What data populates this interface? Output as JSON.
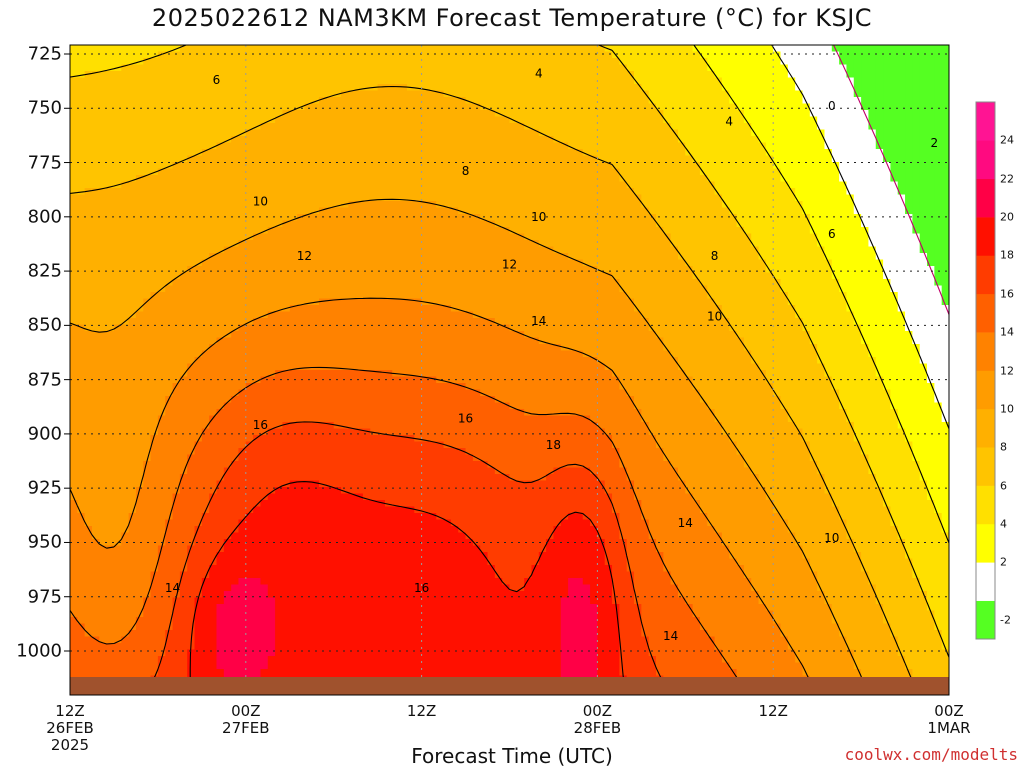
{
  "title": "2025022612 NAM3KM Forecast Temperature (°C) for KSJC",
  "credit": "coolwx.com/modelts",
  "chart_data": {
    "type": "heatmap",
    "title": "2025022612 NAM3KM Forecast Temperature (°C) for KSJC",
    "xlabel": "Forecast Time (UTC)",
    "ylabel": "",
    "y_ticks": [
      "725",
      "750",
      "775",
      "800",
      "825",
      "850",
      "875",
      "900",
      "925",
      "950",
      "975",
      "1000"
    ],
    "y_values": [
      725,
      750,
      775,
      800,
      825,
      850,
      875,
      900,
      925,
      950,
      975,
      1000
    ],
    "ylim": [
      1015,
      715
    ],
    "x_ticks": [
      {
        "hour": 0,
        "lines": [
          "12Z",
          "26FEB",
          "2025"
        ]
      },
      {
        "hour": 12,
        "lines": [
          "00Z",
          "27FEB"
        ]
      },
      {
        "hour": 24,
        "lines": [
          "12Z"
        ]
      },
      {
        "hour": 36,
        "lines": [
          "00Z",
          "28FEB"
        ]
      },
      {
        "hour": 48,
        "lines": [
          "12Z"
        ]
      },
      {
        "hour": 60,
        "lines": [
          "00Z",
          "1MAR"
        ]
      }
    ],
    "xlim": [
      0,
      60
    ],
    "grid": true,
    "colorbar": {
      "labels": [
        "-2",
        "2",
        "4",
        "6",
        "8",
        "10",
        "12",
        "14",
        "16",
        "18",
        "20",
        "22",
        "24"
      ],
      "bins": [
        {
          "from": -4,
          "to": 0,
          "color": "#55ff22"
        },
        {
          "from": 0,
          "to": 2,
          "color": "#ffffff"
        },
        {
          "from": 2,
          "to": 4,
          "color": "#ffff00"
        },
        {
          "from": 4,
          "to": 6,
          "color": "#ffe000"
        },
        {
          "from": 6,
          "to": 8,
          "color": "#ffc400"
        },
        {
          "from": 8,
          "to": 10,
          "color": "#ffb000"
        },
        {
          "from": 10,
          "to": 12,
          "color": "#ff9c00"
        },
        {
          "from": 12,
          "to": 14,
          "color": "#ff8200"
        },
        {
          "from": 14,
          "to": 16,
          "color": "#ff6000"
        },
        {
          "from": 16,
          "to": 18,
          "color": "#ff3c00"
        },
        {
          "from": 18,
          "to": 20,
          "color": "#ff1000"
        },
        {
          "from": 20,
          "to": 22,
          "color": "#ff0046"
        },
        {
          "from": 22,
          "to": 24,
          "color": "#ff0a80"
        },
        {
          "from": 24,
          "to": 26,
          "color": "#ff1493"
        }
      ]
    },
    "contour_labels": [
      {
        "value": "6",
        "hour": 10,
        "p": 737
      },
      {
        "value": "4",
        "hour": 32,
        "p": 734
      },
      {
        "value": "0",
        "hour": 52,
        "p": 749
      },
      {
        "value": "2",
        "hour": 59,
        "p": 766
      },
      {
        "value": "4",
        "hour": 45,
        "p": 756
      },
      {
        "value": "8",
        "hour": 27,
        "p": 779
      },
      {
        "value": "10",
        "hour": 13,
        "p": 793
      },
      {
        "value": "10",
        "hour": 32,
        "p": 800
      },
      {
        "value": "6",
        "hour": 52,
        "p": 808
      },
      {
        "value": "8",
        "hour": 44,
        "p": 818
      },
      {
        "value": "12",
        "hour": 16,
        "p": 818
      },
      {
        "value": "12",
        "hour": 30,
        "p": 822
      },
      {
        "value": "10",
        "hour": 44,
        "p": 846
      },
      {
        "value": "14",
        "hour": 32,
        "p": 848
      },
      {
        "value": "16",
        "hour": 27,
        "p": 893
      },
      {
        "value": "16",
        "hour": 13,
        "p": 896
      },
      {
        "value": "18",
        "hour": 33,
        "p": 905
      },
      {
        "value": "14",
        "hour": 42,
        "p": 941
      },
      {
        "value": "10",
        "hour": 52,
        "p": 948
      },
      {
        "value": "14",
        "hour": 7,
        "p": 971
      },
      {
        "value": "16",
        "hour": 24,
        "p": 971
      },
      {
        "value": "14",
        "hour": 41,
        "p": 993
      }
    ],
    "terrain_color": "#a0522d"
  }
}
